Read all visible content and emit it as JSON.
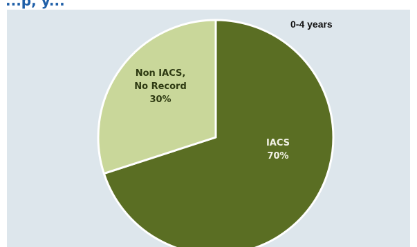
{
  "heading_fragment": "...p, y...",
  "chart_data": {
    "type": "pie",
    "title": "0-4 years",
    "categories": [
      "IACS",
      "Non IACS, No Record"
    ],
    "values": [
      70,
      30
    ],
    "units": "%",
    "series": [
      {
        "values": [
          70,
          30
        ]
      }
    ],
    "slices": [
      {
        "label_lines": [
          "IACS",
          "70%"
        ],
        "value": 70,
        "color": "#5a6e23",
        "label_color": "#f2f2e6"
      },
      {
        "label_lines": [
          "Non IACS,",
          "No Record",
          "30%"
        ],
        "value": 30,
        "color": "#c9d79a",
        "label_color": "#2e3a12"
      }
    ],
    "legend": "none",
    "grid": false
  }
}
